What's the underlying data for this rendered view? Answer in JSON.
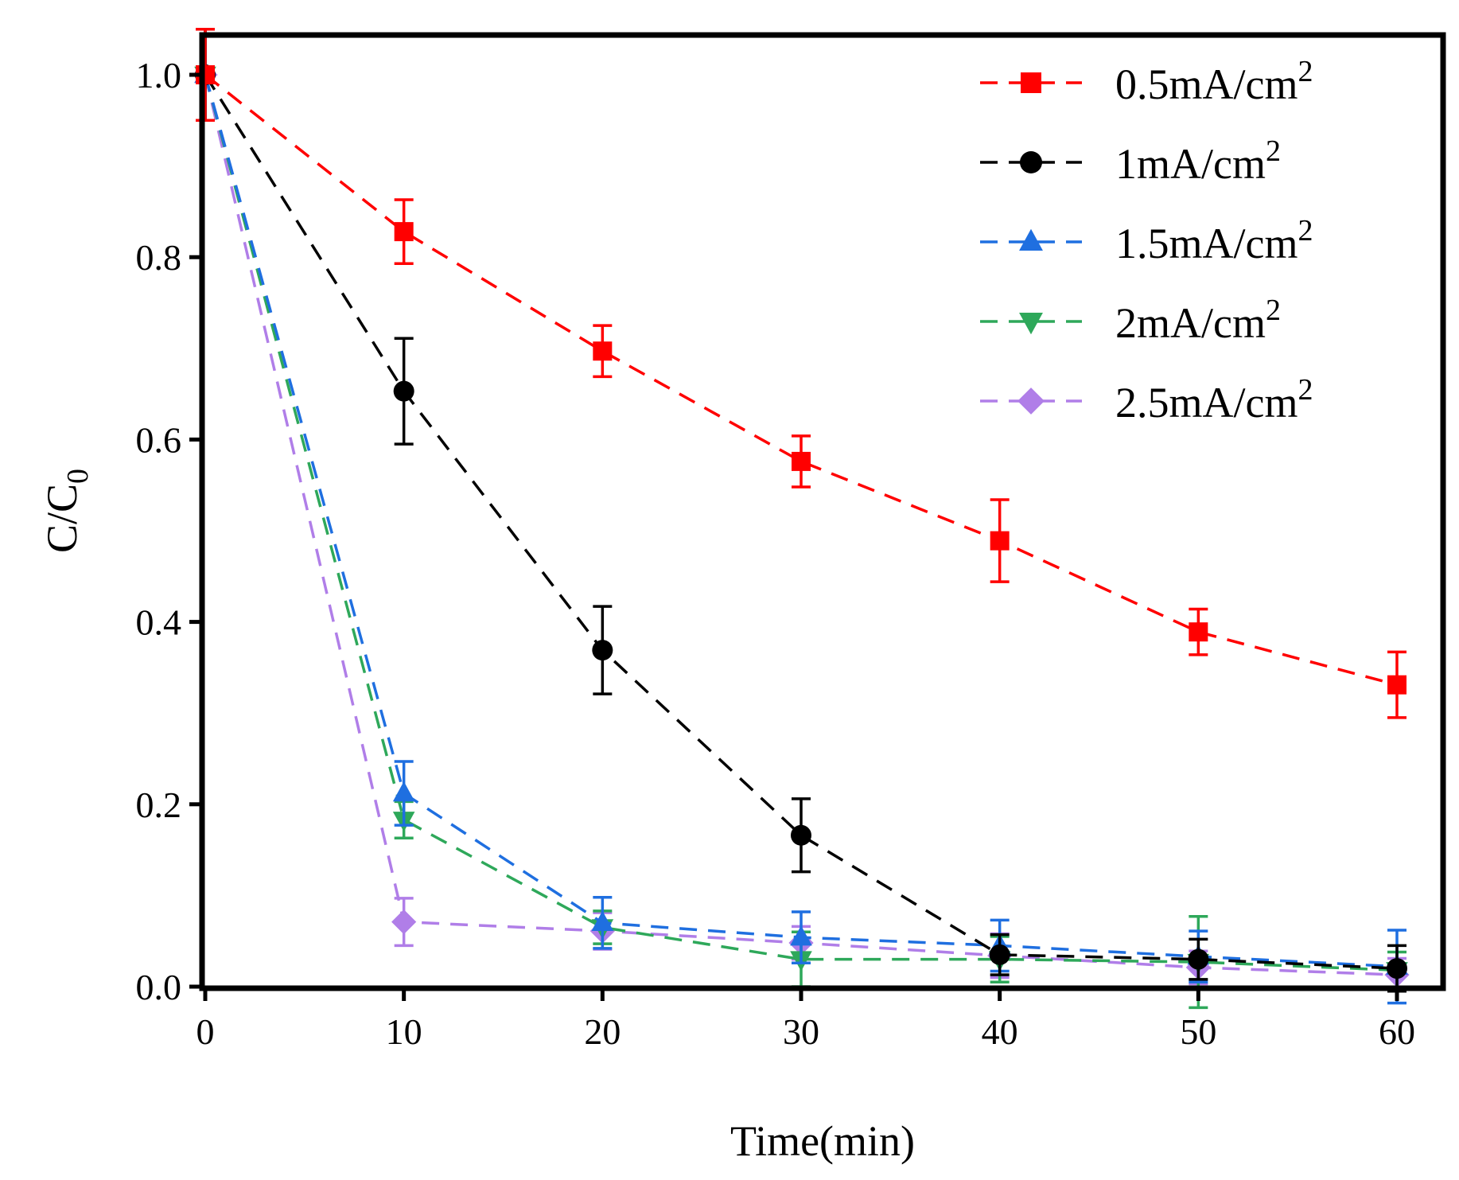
{
  "chart_data": {
    "type": "line",
    "title": "",
    "xlabel": "Time(min)",
    "ylabel": {
      "main": "C/C",
      "sub": "0"
    },
    "xlim": [
      0,
      62
    ],
    "ylim": [
      0,
      1.05
    ],
    "xticks": [
      0,
      10,
      20,
      30,
      40,
      50,
      60
    ],
    "xtick_labels": [
      "0",
      "10",
      "20",
      "30",
      "40",
      "50",
      "60"
    ],
    "yticks": [
      0,
      0.2,
      0.4,
      0.6,
      0.8,
      1.0
    ],
    "ytick_labels": [
      "0.0",
      "0.2",
      "0.4",
      "0.6",
      "0.8",
      "1.0"
    ],
    "grid": false,
    "legend_position": "top-right",
    "x": [
      0,
      10,
      20,
      30,
      40,
      50,
      60
    ],
    "series": [
      {
        "name": "0.5mA/cm",
        "sup": "2",
        "color": "#ff0000",
        "marker": "square",
        "values": [
          1.0,
          0.828,
          0.697,
          0.576,
          0.489,
          0.389,
          0.331
        ],
        "errors": [
          0.05,
          0.035,
          0.028,
          0.028,
          0.045,
          0.025,
          0.036
        ]
      },
      {
        "name": "1mA/cm",
        "sup": "2",
        "color": "#000000",
        "marker": "circle",
        "values": [
          1.0,
          0.653,
          0.369,
          0.166,
          0.035,
          0.03,
          0.02
        ],
        "errors": [
          0.05,
          0.058,
          0.048,
          0.04,
          0.022,
          0.022,
          0.025
        ]
      },
      {
        "name": "1.5mA/cm",
        "sup": "2",
        "color": "#1f6fe0",
        "marker": "triangle-up",
        "values": [
          1.0,
          0.212,
          0.07,
          0.054,
          0.045,
          0.033,
          0.022
        ],
        "errors": [
          0.05,
          0.035,
          0.028,
          0.028,
          0.028,
          0.028,
          0.04
        ]
      },
      {
        "name": "2mA/cm",
        "sup": "2",
        "color": "#2ea85a",
        "marker": "triangle-down",
        "values": [
          1.0,
          0.183,
          0.065,
          0.03,
          0.03,
          0.027,
          0.018
        ],
        "errors": [
          0.05,
          0.02,
          0.018,
          0.03,
          0.025,
          0.05,
          0.02
        ]
      },
      {
        "name": "2.5mA/cm",
        "sup": "2",
        "color": "#b07ee8",
        "marker": "diamond",
        "values": [
          1.0,
          0.071,
          0.061,
          0.048,
          0.034,
          0.021,
          0.013
        ],
        "errors": [
          0.05,
          0.026,
          0.02,
          0.018,
          0.024,
          0.018,
          0.018
        ]
      }
    ]
  }
}
